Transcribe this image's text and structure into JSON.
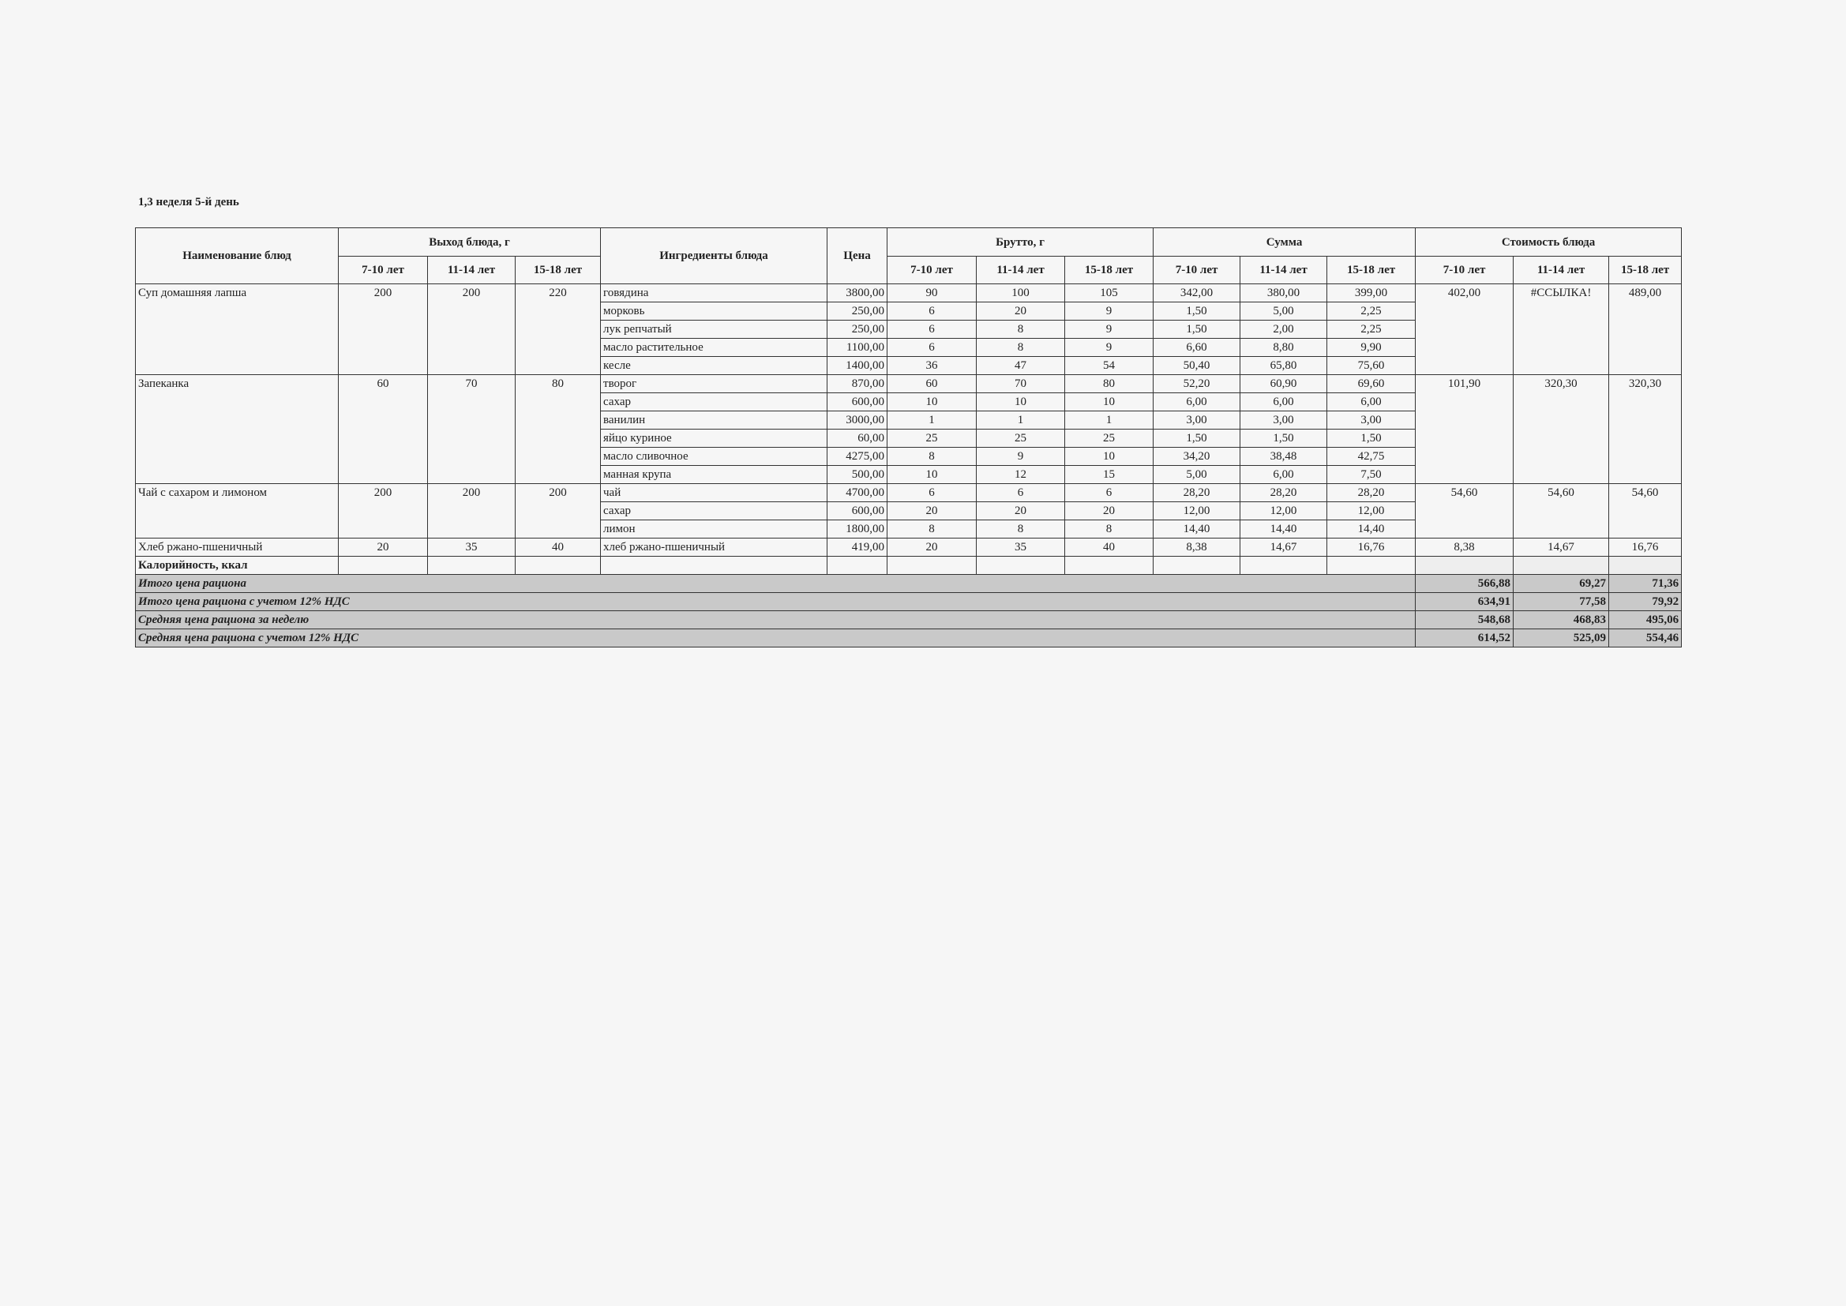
{
  "title": "1,3 неделя 5-й день",
  "headers": {
    "dish_name": "Наименование блюд",
    "yield": "Выход блюда, г",
    "ingredients": "Ингредиенты блюда",
    "price": "Цена",
    "brutto": "Брутто, г",
    "sum": "Сумма",
    "cost": "Стоимость блюда",
    "ages": [
      "7-10 лет",
      "11-14 лет",
      "15-18 лет"
    ]
  },
  "dishes": [
    {
      "name": "Суп домашняя лапша",
      "yield": [
        "200",
        "200",
        "220"
      ],
      "cost": [
        "402,00",
        "#ССЫЛКА!",
        "489,00"
      ],
      "ingredients": [
        {
          "name": "говядина",
          "price": "3800,00",
          "brutto": [
            "90",
            "100",
            "105"
          ],
          "sum": [
            "342,00",
            "380,00",
            "399,00"
          ]
        },
        {
          "name": "морковь",
          "price": "250,00",
          "brutto": [
            "6",
            "20",
            "9"
          ],
          "sum": [
            "1,50",
            "5,00",
            "2,25"
          ]
        },
        {
          "name": "лук репчатый",
          "price": "250,00",
          "brutto": [
            "6",
            "8",
            "9"
          ],
          "sum": [
            "1,50",
            "2,00",
            "2,25"
          ]
        },
        {
          "name": "масло растительное",
          "price": "1100,00",
          "brutto": [
            "6",
            "8",
            "9"
          ],
          "sum": [
            "6,60",
            "8,80",
            "9,90"
          ]
        },
        {
          "name": "кесле",
          "price": "1400,00",
          "brutto": [
            "36",
            "47",
            "54"
          ],
          "sum": [
            "50,40",
            "65,80",
            "75,60"
          ]
        }
      ]
    },
    {
      "name": "Запеканка",
      "yield": [
        "60",
        "70",
        "80"
      ],
      "cost": [
        "101,90",
        "320,30",
        "320,30"
      ],
      "ingredients": [
        {
          "name": "творог",
          "price": "870,00",
          "brutto": [
            "60",
            "70",
            "80"
          ],
          "sum": [
            "52,20",
            "60,90",
            "69,60"
          ]
        },
        {
          "name": "сахар",
          "price": "600,00",
          "brutto": [
            "10",
            "10",
            "10"
          ],
          "sum": [
            "6,00",
            "6,00",
            "6,00"
          ]
        },
        {
          "name": "ванилин",
          "price": "3000,00",
          "brutto": [
            "1",
            "1",
            "1"
          ],
          "sum": [
            "3,00",
            "3,00",
            "3,00"
          ]
        },
        {
          "name": "яйцо куриное",
          "price": "60,00",
          "brutto": [
            "25",
            "25",
            "25"
          ],
          "sum": [
            "1,50",
            "1,50",
            "1,50"
          ]
        },
        {
          "name": "масло сливочное",
          "price": "4275,00",
          "brutto": [
            "8",
            "9",
            "10"
          ],
          "sum": [
            "34,20",
            "38,48",
            "42,75"
          ]
        },
        {
          "name": "манная крупа",
          "price": "500,00",
          "brutto": [
            "10",
            "12",
            "15"
          ],
          "sum": [
            "5,00",
            "6,00",
            "7,50"
          ]
        }
      ]
    },
    {
      "name": "Чай с сахаром и лимоном",
      "yield": [
        "200",
        "200",
        "200"
      ],
      "cost": [
        "54,60",
        "54,60",
        "54,60"
      ],
      "ingredients": [
        {
          "name": "чай",
          "price": "4700,00",
          "brutto": [
            "6",
            "6",
            "6"
          ],
          "sum": [
            "28,20",
            "28,20",
            "28,20"
          ]
        },
        {
          "name": "сахар",
          "price": "600,00",
          "brutto": [
            "20",
            "20",
            "20"
          ],
          "sum": [
            "12,00",
            "12,00",
            "12,00"
          ]
        },
        {
          "name": "лимон",
          "price": "1800,00",
          "brutto": [
            "8",
            "8",
            "8"
          ],
          "sum": [
            "14,40",
            "14,40",
            "14,40"
          ]
        }
      ]
    },
    {
      "name": "Хлеб ржано-пшеничный",
      "yield": [
        "20",
        "35",
        "40"
      ],
      "cost": [
        "8,38",
        "14,67",
        "16,76"
      ],
      "ingredients": [
        {
          "name": "хлеб ржано-пшеничный",
          "price": "419,00",
          "brutto": [
            "20",
            "35",
            "40"
          ],
          "sum": [
            "8,38",
            "14,67",
            "16,76"
          ]
        }
      ]
    }
  ],
  "calories_label": "Калорийность, ккал",
  "summary": [
    {
      "label": "Итого цена рациона",
      "values": [
        "566,88",
        "69,27",
        "71,36"
      ]
    },
    {
      "label": "Итого цена рациона с учетом 12% НДС",
      "values": [
        "634,91",
        "77,58",
        "79,92"
      ]
    },
    {
      "label": "Средняя цена рациона за неделю",
      "values": [
        "548,68",
        "468,83",
        "495,06"
      ]
    },
    {
      "label": "Средняя цена рациона с учетом 12% НДС",
      "values": [
        "614,52",
        "525,09",
        "554,46"
      ]
    }
  ]
}
